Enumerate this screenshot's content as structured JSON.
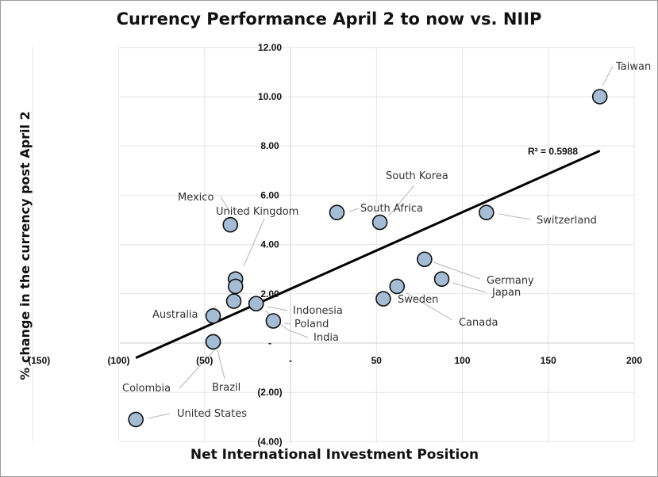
{
  "chart_data": {
    "type": "scatter",
    "title": "Currency Performance April 2 to now vs. NIIP",
    "xlabel": "Net International Investment Position",
    "ylabel": "% change in the currency post April 2",
    "xlim": [
      -150,
      200
    ],
    "ylim": [
      -4,
      12
    ],
    "x_ticks": [
      "(150)",
      "(100)",
      "(50)",
      "-",
      "50",
      "100",
      "150",
      "200"
    ],
    "y_ticks": [
      "12.00",
      "10.00",
      "8.00",
      "6.00",
      "4.00",
      "2.00",
      "-",
      "(2.00)",
      "(4.00)"
    ],
    "grid": true,
    "points": [
      {
        "label": "Taiwan",
        "x": 180,
        "y": 10.0
      },
      {
        "label": "Switzerland",
        "x": 114,
        "y": 5.3
      },
      {
        "label": "South Korea",
        "x": 52,
        "y": 4.9
      },
      {
        "label": "South Africa",
        "x": 27,
        "y": 5.3
      },
      {
        "label": "Germany",
        "x": 78,
        "y": 3.4
      },
      {
        "label": "Japan",
        "x": 88,
        "y": 2.6
      },
      {
        "label": "Canada",
        "x": 62,
        "y": 2.3
      },
      {
        "label": "Sweden",
        "x": 54,
        "y": 1.8
      },
      {
        "label": "Mexico",
        "x": -35,
        "y": 4.8
      },
      {
        "label": "United Kingdom",
        "x": -32,
        "y": 2.6
      },
      {
        "label": "Indonesia",
        "x": -20,
        "y": 1.6
      },
      {
        "label": "Poland",
        "x": -10,
        "y": 0.9
      },
      {
        "label": "India",
        "x": -20,
        "y": 1.6
      },
      {
        "label": "Australia",
        "x": -45,
        "y": 1.1
      },
      {
        "label": "Colombia",
        "x": -45,
        "y": 0.05
      },
      {
        "label": "Brazil",
        "x": -45,
        "y": 0.05
      },
      {
        "label": "United States",
        "x": -90,
        "y": -3.1
      }
    ],
    "extra_points": [
      {
        "x": -32,
        "y": 2.3
      },
      {
        "x": -33,
        "y": 1.7
      }
    ],
    "trendline": {
      "x": [
        -90,
        180
      ],
      "y": [
        -0.6,
        7.8
      ],
      "label": "R² = 0.5988"
    }
  }
}
